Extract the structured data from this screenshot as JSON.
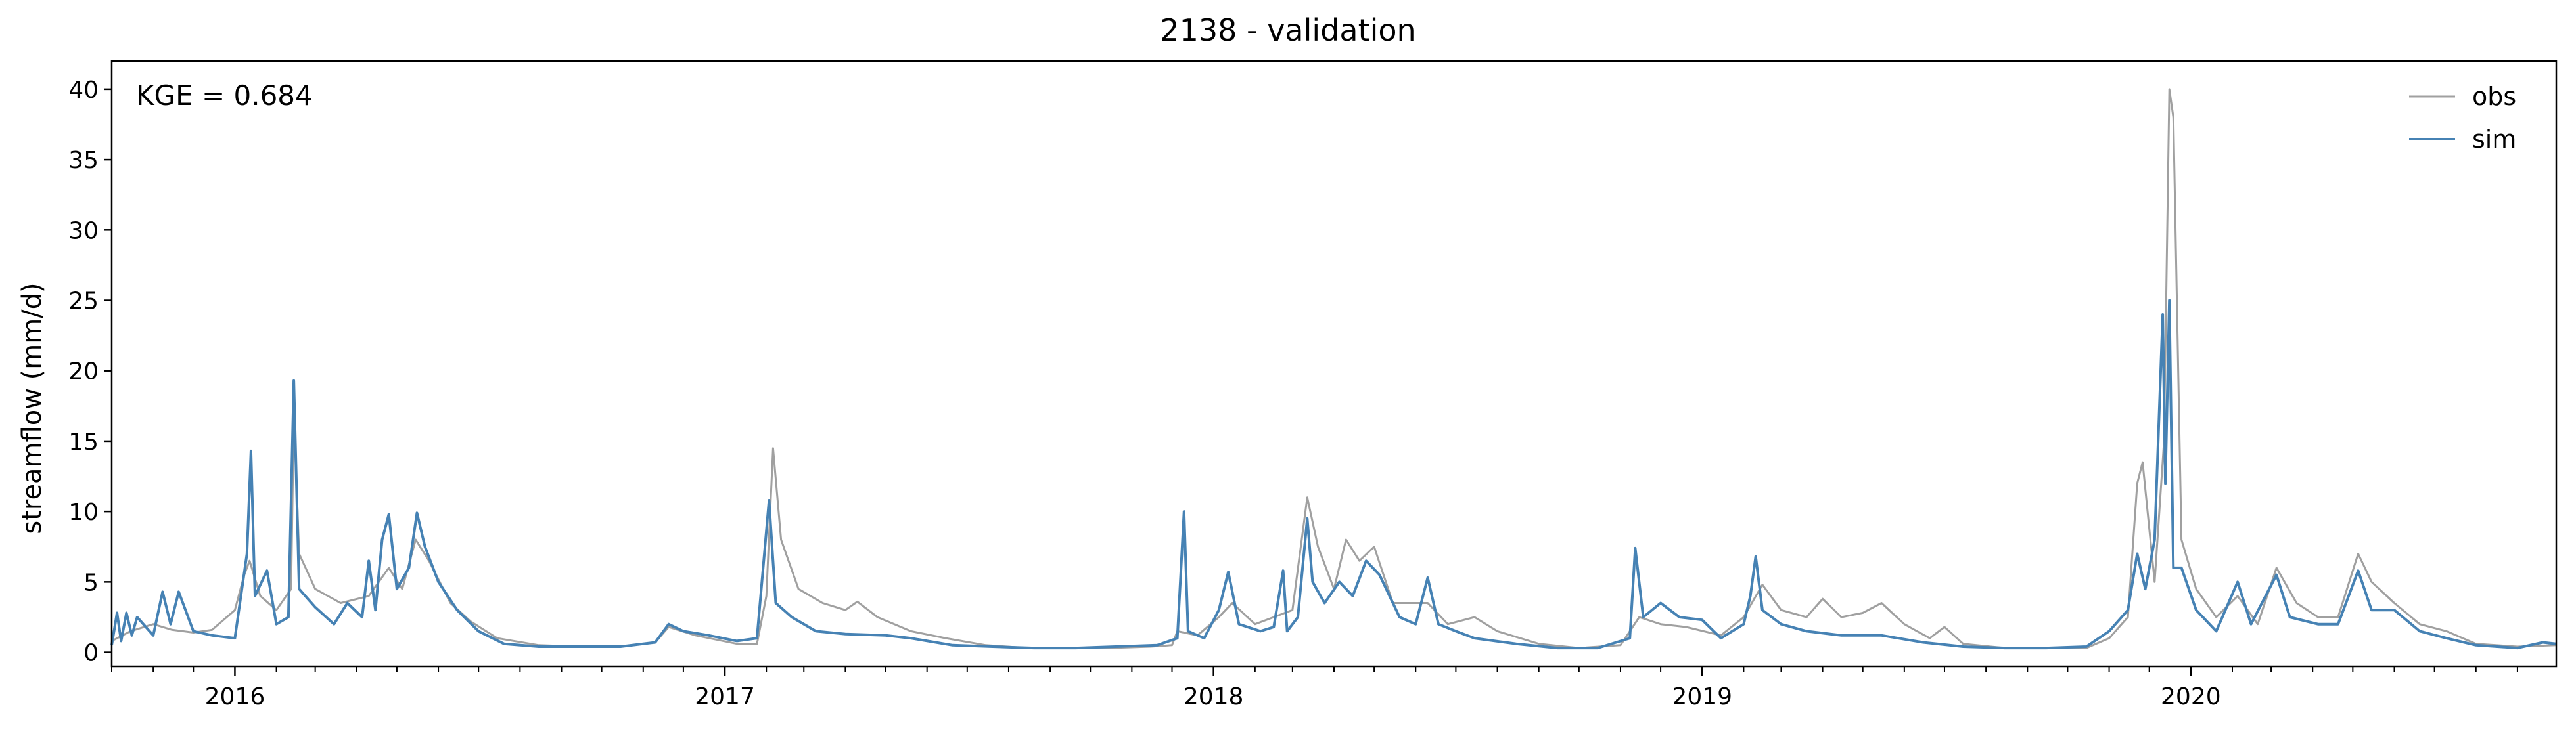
{
  "chart_data": {
    "type": "line",
    "title": "2138 - validation",
    "xlabel": "",
    "ylabel": "streamflow (mm/d)",
    "ylim": [
      -1,
      42
    ],
    "y_ticks": [
      0,
      5,
      10,
      15,
      20,
      25,
      30,
      35,
      40
    ],
    "xlim": [
      "2015-10-01",
      "2020-09-30"
    ],
    "x_ticks": [
      {
        "date": "2016-01-01",
        "label": "2016"
      },
      {
        "date": "2017-01-01",
        "label": "2017"
      },
      {
        "date": "2018-01-01",
        "label": "2018"
      },
      {
        "date": "2019-01-01",
        "label": "2019"
      },
      {
        "date": "2020-01-01",
        "label": "2020"
      }
    ],
    "annotation": "KGE = 0.684",
    "legend_position": "top-right",
    "grid": false,
    "series": [
      {
        "name": "obs",
        "color": "#a0a0a0",
        "points": [
          [
            "2015-10-01",
            0.8
          ],
          [
            "2015-10-15",
            1.5
          ],
          [
            "2015-11-01",
            2.0
          ],
          [
            "2015-11-15",
            1.6
          ],
          [
            "2015-12-01",
            1.4
          ],
          [
            "2015-12-15",
            1.6
          ],
          [
            "2016-01-01",
            3.0
          ],
          [
            "2016-01-08",
            5.5
          ],
          [
            "2016-01-12",
            6.5
          ],
          [
            "2016-01-20",
            4.0
          ],
          [
            "2016-02-01",
            3.0
          ],
          [
            "2016-02-12",
            4.5
          ],
          [
            "2016-02-14",
            17.0
          ],
          [
            "2016-02-18",
            7.0
          ],
          [
            "2016-03-01",
            4.5
          ],
          [
            "2016-03-20",
            3.5
          ],
          [
            "2016-04-10",
            4.0
          ],
          [
            "2016-04-25",
            6.0
          ],
          [
            "2016-05-05",
            4.5
          ],
          [
            "2016-05-15",
            8.0
          ],
          [
            "2016-05-25",
            6.5
          ],
          [
            "2016-06-10",
            3.5
          ],
          [
            "2016-06-25",
            2.2
          ],
          [
            "2016-07-15",
            1.0
          ],
          [
            "2016-08-15",
            0.5
          ],
          [
            "2016-09-15",
            0.4
          ],
          [
            "2016-10-15",
            0.4
          ],
          [
            "2016-11-10",
            0.7
          ],
          [
            "2016-11-20",
            1.8
          ],
          [
            "2016-12-10",
            1.2
          ],
          [
            "2017-01-10",
            0.6
          ],
          [
            "2017-01-25",
            0.6
          ],
          [
            "2017-02-01",
            4.0
          ],
          [
            "2017-02-06",
            14.5
          ],
          [
            "2017-02-12",
            8.0
          ],
          [
            "2017-02-25",
            4.5
          ],
          [
            "2017-03-15",
            3.5
          ],
          [
            "2017-04-01",
            3.0
          ],
          [
            "2017-04-10",
            3.6
          ],
          [
            "2017-04-25",
            2.5
          ],
          [
            "2017-05-20",
            1.5
          ],
          [
            "2017-06-15",
            1.0
          ],
          [
            "2017-07-15",
            0.5
          ],
          [
            "2017-08-15",
            0.3
          ],
          [
            "2017-09-15",
            0.3
          ],
          [
            "2017-10-15",
            0.3
          ],
          [
            "2017-11-15",
            0.4
          ],
          [
            "2017-12-01",
            0.5
          ],
          [
            "2017-12-05",
            1.5
          ],
          [
            "2017-12-20",
            1.2
          ],
          [
            "2018-01-05",
            2.5
          ],
          [
            "2018-01-15",
            3.5
          ],
          [
            "2018-02-01",
            2.0
          ],
          [
            "2018-02-15",
            2.5
          ],
          [
            "2018-03-01",
            3.0
          ],
          [
            "2018-03-12",
            11.0
          ],
          [
            "2018-03-20",
            7.5
          ],
          [
            "2018-04-01",
            4.5
          ],
          [
            "2018-04-10",
            8.0
          ],
          [
            "2018-04-20",
            6.5
          ],
          [
            "2018-05-01",
            7.5
          ],
          [
            "2018-05-15",
            3.5
          ],
          [
            "2018-06-10",
            3.5
          ],
          [
            "2018-06-25",
            2.0
          ],
          [
            "2018-07-15",
            2.5
          ],
          [
            "2018-08-01",
            1.5
          ],
          [
            "2018-09-01",
            0.6
          ],
          [
            "2018-10-01",
            0.3
          ],
          [
            "2018-11-01",
            0.5
          ],
          [
            "2018-11-15",
            2.5
          ],
          [
            "2018-12-01",
            2.0
          ],
          [
            "2018-12-20",
            1.8
          ],
          [
            "2019-01-15",
            1.2
          ],
          [
            "2019-02-01",
            2.5
          ],
          [
            "2019-02-15",
            4.8
          ],
          [
            "2019-03-01",
            3.0
          ],
          [
            "2019-03-20",
            2.5
          ],
          [
            "2019-04-01",
            3.8
          ],
          [
            "2019-04-15",
            2.5
          ],
          [
            "2019-05-01",
            2.8
          ],
          [
            "2019-05-15",
            3.5
          ],
          [
            "2019-06-01",
            2.0
          ],
          [
            "2019-06-20",
            1.0
          ],
          [
            "2019-07-01",
            1.8
          ],
          [
            "2019-07-15",
            0.6
          ],
          [
            "2019-08-15",
            0.3
          ],
          [
            "2019-09-15",
            0.3
          ],
          [
            "2019-10-15",
            0.3
          ],
          [
            "2019-11-01",
            1.0
          ],
          [
            "2019-11-15",
            2.5
          ],
          [
            "2019-11-22",
            12.0
          ],
          [
            "2019-11-26",
            13.5
          ],
          [
            "2019-12-05",
            5.0
          ],
          [
            "2019-12-12",
            15.0
          ],
          [
            "2019-12-16",
            40.0
          ],
          [
            "2019-12-19",
            38.0
          ],
          [
            "2019-12-25",
            8.0
          ],
          [
            "2020-01-05",
            4.5
          ],
          [
            "2020-01-20",
            2.5
          ],
          [
            "2020-02-05",
            4.0
          ],
          [
            "2020-02-20",
            2.0
          ],
          [
            "2020-03-05",
            6.0
          ],
          [
            "2020-03-20",
            3.5
          ],
          [
            "2020-04-05",
            2.5
          ],
          [
            "2020-04-20",
            2.5
          ],
          [
            "2020-05-05",
            7.0
          ],
          [
            "2020-05-15",
            5.0
          ],
          [
            "2020-06-01",
            3.5
          ],
          [
            "2020-06-20",
            2.0
          ],
          [
            "2020-07-10",
            1.5
          ],
          [
            "2020-08-01",
            0.6
          ],
          [
            "2020-09-01",
            0.4
          ],
          [
            "2020-09-30",
            0.5
          ]
        ]
      },
      {
        "name": "sim",
        "color": "#4682b4",
        "points": [
          [
            "2015-10-01",
            0.5
          ],
          [
            "2015-10-05",
            2.8
          ],
          [
            "2015-10-08",
            0.8
          ],
          [
            "2015-10-12",
            2.8
          ],
          [
            "2015-10-16",
            1.2
          ],
          [
            "2015-10-20",
            2.5
          ],
          [
            "2015-11-01",
            1.2
          ],
          [
            "2015-11-08",
            4.3
          ],
          [
            "2015-11-14",
            2.0
          ],
          [
            "2015-11-20",
            4.3
          ],
          [
            "2015-12-01",
            1.5
          ],
          [
            "2015-12-15",
            1.2
          ],
          [
            "2016-01-01",
            1.0
          ],
          [
            "2016-01-10",
            7.0
          ],
          [
            "2016-01-13",
            14.3
          ],
          [
            "2016-01-16",
            4.0
          ],
          [
            "2016-01-25",
            5.8
          ],
          [
            "2016-02-01",
            2.0
          ],
          [
            "2016-02-10",
            2.5
          ],
          [
            "2016-02-14",
            19.3
          ],
          [
            "2016-02-18",
            4.5
          ],
          [
            "2016-03-01",
            3.2
          ],
          [
            "2016-03-15",
            2.0
          ],
          [
            "2016-03-25",
            3.5
          ],
          [
            "2016-04-05",
            2.5
          ],
          [
            "2016-04-10",
            6.5
          ],
          [
            "2016-04-15",
            3.0
          ],
          [
            "2016-04-20",
            8.0
          ],
          [
            "2016-04-25",
            9.8
          ],
          [
            "2016-05-01",
            4.5
          ],
          [
            "2016-05-10",
            6.0
          ],
          [
            "2016-05-16",
            9.9
          ],
          [
            "2016-05-22",
            7.5
          ],
          [
            "2016-06-01",
            5.0
          ],
          [
            "2016-06-15",
            3.0
          ],
          [
            "2016-07-01",
            1.5
          ],
          [
            "2016-07-20",
            0.6
          ],
          [
            "2016-08-15",
            0.4
          ],
          [
            "2016-09-15",
            0.4
          ],
          [
            "2016-10-15",
            0.4
          ],
          [
            "2016-11-10",
            0.7
          ],
          [
            "2016-11-20",
            2.0
          ],
          [
            "2016-12-01",
            1.5
          ],
          [
            "2016-12-20",
            1.2
          ],
          [
            "2017-01-10",
            0.8
          ],
          [
            "2017-01-25",
            1.0
          ],
          [
            "2017-02-03",
            10.8
          ],
          [
            "2017-02-08",
            3.5
          ],
          [
            "2017-02-20",
            2.5
          ],
          [
            "2017-03-10",
            1.5
          ],
          [
            "2017-04-01",
            1.3
          ],
          [
            "2017-05-01",
            1.2
          ],
          [
            "2017-05-20",
            1.0
          ],
          [
            "2017-06-20",
            0.5
          ],
          [
            "2017-07-20",
            0.4
          ],
          [
            "2017-08-20",
            0.3
          ],
          [
            "2017-09-20",
            0.3
          ],
          [
            "2017-10-20",
            0.4
          ],
          [
            "2017-11-20",
            0.5
          ],
          [
            "2017-12-05",
            1.0
          ],
          [
            "2017-12-10",
            10.0
          ],
          [
            "2017-12-13",
            1.5
          ],
          [
            "2017-12-25",
            1.0
          ],
          [
            "2018-01-05",
            3.0
          ],
          [
            "2018-01-12",
            5.7
          ],
          [
            "2018-01-20",
            2.0
          ],
          [
            "2018-02-05",
            1.5
          ],
          [
            "2018-02-15",
            1.8
          ],
          [
            "2018-02-22",
            5.8
          ],
          [
            "2018-02-25",
            1.5
          ],
          [
            "2018-03-05",
            2.5
          ],
          [
            "2018-03-12",
            9.5
          ],
          [
            "2018-03-16",
            5.0
          ],
          [
            "2018-03-25",
            3.5
          ],
          [
            "2018-04-05",
            5.0
          ],
          [
            "2018-04-15",
            4.0
          ],
          [
            "2018-04-25",
            6.5
          ],
          [
            "2018-05-05",
            5.5
          ],
          [
            "2018-05-20",
            2.5
          ],
          [
            "2018-06-01",
            2.0
          ],
          [
            "2018-06-10",
            5.3
          ],
          [
            "2018-06-18",
            2.0
          ],
          [
            "2018-07-01",
            1.5
          ],
          [
            "2018-07-15",
            1.0
          ],
          [
            "2018-08-15",
            0.6
          ],
          [
            "2018-09-15",
            0.3
          ],
          [
            "2018-10-15",
            0.3
          ],
          [
            "2018-11-08",
            1.0
          ],
          [
            "2018-11-12",
            7.4
          ],
          [
            "2018-11-18",
            2.5
          ],
          [
            "2018-12-01",
            3.5
          ],
          [
            "2018-12-15",
            2.5
          ],
          [
            "2019-01-01",
            2.3
          ],
          [
            "2019-01-15",
            1.0
          ],
          [
            "2019-02-01",
            2.0
          ],
          [
            "2019-02-06",
            4.0
          ],
          [
            "2019-02-10",
            6.8
          ],
          [
            "2019-02-15",
            3.0
          ],
          [
            "2019-03-01",
            2.0
          ],
          [
            "2019-03-20",
            1.5
          ],
          [
            "2019-04-15",
            1.2
          ],
          [
            "2019-05-15",
            1.2
          ],
          [
            "2019-06-15",
            0.7
          ],
          [
            "2019-07-15",
            0.4
          ],
          [
            "2019-08-15",
            0.3
          ],
          [
            "2019-09-15",
            0.3
          ],
          [
            "2019-10-15",
            0.4
          ],
          [
            "2019-11-01",
            1.5
          ],
          [
            "2019-11-15",
            3.0
          ],
          [
            "2019-11-22",
            7.0
          ],
          [
            "2019-11-28",
            4.5
          ],
          [
            "2019-12-05",
            8.0
          ],
          [
            "2019-12-11",
            24.0
          ],
          [
            "2019-12-13",
            12.0
          ],
          [
            "2019-12-16",
            25.0
          ],
          [
            "2019-12-19",
            6.0
          ],
          [
            "2019-12-25",
            6.0
          ],
          [
            "2020-01-05",
            3.0
          ],
          [
            "2020-01-20",
            1.5
          ],
          [
            "2020-02-05",
            5.0
          ],
          [
            "2020-02-15",
            2.0
          ],
          [
            "2020-03-05",
            5.5
          ],
          [
            "2020-03-15",
            2.5
          ],
          [
            "2020-04-05",
            2.0
          ],
          [
            "2020-04-20",
            2.0
          ],
          [
            "2020-05-05",
            5.8
          ],
          [
            "2020-05-15",
            3.0
          ],
          [
            "2020-06-01",
            3.0
          ],
          [
            "2020-06-20",
            1.5
          ],
          [
            "2020-07-10",
            1.0
          ],
          [
            "2020-08-01",
            0.5
          ],
          [
            "2020-09-01",
            0.3
          ],
          [
            "2020-09-20",
            0.7
          ],
          [
            "2020-09-30",
            0.6
          ]
        ]
      }
    ]
  }
}
